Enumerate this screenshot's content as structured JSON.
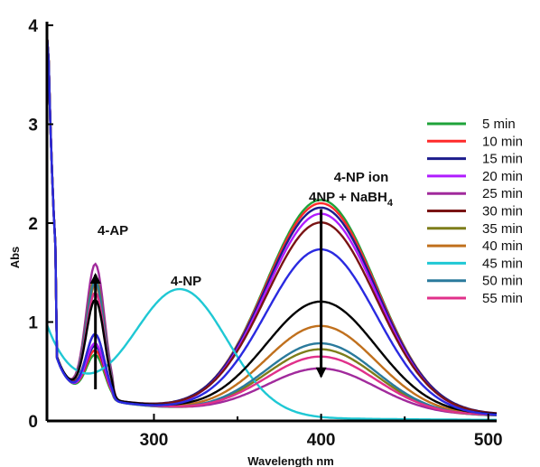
{
  "chart_data": {
    "type": "line",
    "title": "",
    "xlabel": "Wavelength nm",
    "ylabel": "Abs",
    "xlim": [
      236,
      505
    ],
    "ylim": [
      0,
      4
    ],
    "x_ticks": [
      "300",
      "400",
      "500"
    ],
    "y_ticks": [
      "0",
      "1",
      "2",
      "3",
      "4"
    ],
    "grid": false,
    "legend_position": "right",
    "annotations": {
      "ap": "4-AP",
      "np": "4-NP",
      "ion_line1": "4-NP ion",
      "ion_line2_main": "4NP + NaBH",
      "ion_line2_sub": "4"
    },
    "arrows": [
      {
        "name": "4-AP increase",
        "x": 265,
        "y_from": 0.32,
        "y_to": 1.48,
        "direction": "up"
      },
      {
        "name": "4-NP ion decrease",
        "x": 400,
        "y_from": 2.14,
        "y_to": 0.45,
        "direction": "down"
      }
    ],
    "series": [
      {
        "name": "5 min",
        "color": "#1fa33a",
        "ap_peak": 0.55,
        "ion_peak": 2.17
      },
      {
        "name": "10 min",
        "color": "#ff2a2a",
        "ap_peak": 0.6,
        "ion_peak": 2.13
      },
      {
        "name": "15 min",
        "color": "#1c1c8c",
        "ap_peak": 0.65,
        "ion_peak": 2.08
      },
      {
        "name": "20 min",
        "color": "#b01cff",
        "ap_peak": 0.7,
        "ion_peak": 2.03
      },
      {
        "name": "25 min",
        "color": "#a12a9c",
        "ap_peak": 1.72,
        "ion_peak": 0.46
      },
      {
        "name": "30 min",
        "color": "#7a1414",
        "ap_peak": 0.8,
        "ion_peak": 1.93
      },
      {
        "name": "35 min",
        "color": "#7d7d1a",
        "ap_peak": 1.55,
        "ion_peak": 0.66
      },
      {
        "name": "40 min",
        "color": "#c0701d",
        "ap_peak": 1.45,
        "ion_peak": 0.89
      },
      {
        "name": "45 min",
        "color": "#1fc8d4",
        "np_peak": 1.27,
        "np_x": 316
      },
      {
        "name": "50 min",
        "color": "#2a7a9c",
        "ap_peak": 1.5,
        "ion_peak": 0.72
      },
      {
        "name": "55 min",
        "color": "#e0308a",
        "ap_peak": 1.35,
        "ion_peak": 0.58
      },
      {
        "name": "",
        "color": "#000000",
        "ap_peak": 1.25,
        "ion_peak": 1.13
      },
      {
        "name": "",
        "color": "#2a2ae0",
        "ap_peak": 0.82,
        "ion_peak": 1.67
      }
    ]
  }
}
